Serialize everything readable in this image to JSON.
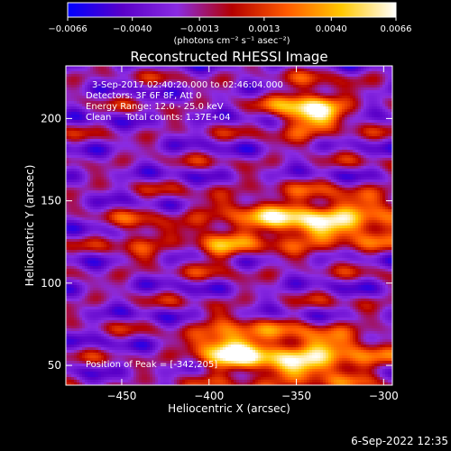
{
  "chart_data": {
    "type": "heatmap",
    "title": "Reconstructed RHESSI Image",
    "xlabel": "Heliocentric X (arcsec)",
    "ylabel": "Heliocentric Y (arcsec)",
    "xlim": [
      -482,
      -295
    ],
    "ylim": [
      38,
      232
    ],
    "x_ticks": [
      -450,
      -400,
      -350,
      -300
    ],
    "x_tick_labels": [
      "−450",
      "−400",
      "−350",
      "−300"
    ],
    "y_ticks": [
      50,
      100,
      150,
      200
    ],
    "y_tick_labels": [
      "50",
      "100",
      "150",
      "200"
    ],
    "colorbar": {
      "range": [
        -0.0066,
        0.0066
      ],
      "ticks": [
        -0.0066,
        -0.004,
        -0.0013,
        0.0013,
        0.004,
        0.0066
      ],
      "tick_labels": [
        "−0.0066",
        "−0.0040",
        "−0.0013",
        "0.0013",
        "0.0040",
        "0.0066"
      ],
      "colors": [
        "#0000ff",
        "#5a00c8",
        "#8a2be2",
        "#b40000",
        "#ff5a00",
        "#ffc800",
        "#ffffff"
      ],
      "units": "(photons cm⁻² s⁻¹ asec⁻²)"
    },
    "annotations": [
      "3-Sep-2017 02:40:20.000 to 02:46:04.000",
      "Detectors: 3F 6F 8F, Att 0",
      "Energy Range: 12.0 - 25.0 keV",
      "Clean     Total counts: 1.37E+04"
    ],
    "peak_label": "Position of Peak = [-342,205]",
    "peak": [
      -342,
      205
    ],
    "sources": [
      {
        "x": -342,
        "y": 205,
        "sx": 14,
        "sy": 10,
        "amp": 1.0
      },
      {
        "x": -338,
        "y": 138,
        "sx": 40,
        "sy": 11,
        "amp": 0.9
      },
      {
        "x": -395,
        "y": 120,
        "sx": 10,
        "sy": 8,
        "amp": 0.45
      },
      {
        "x": -345,
        "y": 55,
        "sx": 30,
        "sy": 12,
        "amp": 0.9
      },
      {
        "x": -390,
        "y": 62,
        "sx": 12,
        "sy": 10,
        "amp": 0.85
      },
      {
        "x": -440,
        "y": 128,
        "sx": 10,
        "sy": 10,
        "amp": 0.4
      }
    ]
  },
  "footer": {
    "date": "6-Sep-2022 12:35"
  }
}
